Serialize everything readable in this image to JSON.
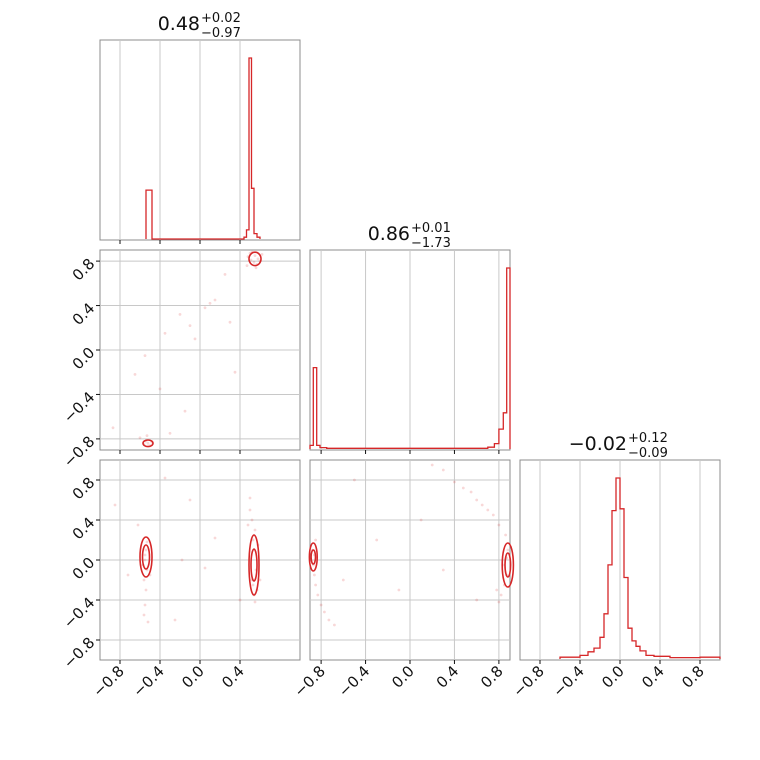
{
  "chart_data": [
    {
      "type": "histogram",
      "panel": "diag-0",
      "title": {
        "value": "0.48",
        "plus": "+0.02",
        "minus": "−0.97"
      },
      "xlim": [
        -1,
        1
      ],
      "bins": [
        {
          "x0": -0.54,
          "x1": -0.48,
          "h": 0.27
        },
        {
          "x0": 0.44,
          "x1": 0.465,
          "h": 0.01
        },
        {
          "x0": 0.465,
          "x1": 0.49,
          "h": 0.05
        },
        {
          "x0": 0.49,
          "x1": 0.515,
          "h": 1.0
        },
        {
          "x0": 0.515,
          "x1": 0.54,
          "h": 0.28
        },
        {
          "x0": 0.54,
          "x1": 0.57,
          "h": 0.03
        },
        {
          "x0": 0.57,
          "x1": 0.6,
          "h": 0.01
        }
      ]
    },
    {
      "type": "histogram",
      "panel": "diag-1",
      "title": {
        "value": "0.86",
        "plus": "+0.01",
        "minus": "−1.73"
      },
      "xlim": [
        -0.9,
        0.9
      ],
      "bins": [
        {
          "x0": -0.9,
          "x1": -0.87,
          "h": 0.02
        },
        {
          "x0": -0.87,
          "x1": -0.84,
          "h": 0.45
        },
        {
          "x0": -0.84,
          "x1": -0.81,
          "h": 0.02
        },
        {
          "x0": -0.81,
          "x1": -0.75,
          "h": 0.008
        },
        {
          "x0": -0.75,
          "x1": 0.7,
          "h": 0.004
        },
        {
          "x0": 0.7,
          "x1": 0.76,
          "h": 0.01
        },
        {
          "x0": 0.76,
          "x1": 0.8,
          "h": 0.03
        },
        {
          "x0": 0.8,
          "x1": 0.84,
          "h": 0.11
        },
        {
          "x0": 0.84,
          "x1": 0.87,
          "h": 0.2
        },
        {
          "x0": 0.87,
          "x1": 0.9,
          "h": 1.0
        }
      ]
    },
    {
      "type": "histogram",
      "panel": "diag-2",
      "title": {
        "value": "−0.02",
        "plus": "+0.12",
        "minus": "−0.09"
      },
      "xlim": [
        -1,
        1
      ],
      "bins": [
        {
          "x0": -0.6,
          "x1": -0.4,
          "h": 0.01
        },
        {
          "x0": -0.4,
          "x1": -0.32,
          "h": 0.02
        },
        {
          "x0": -0.32,
          "x1": -0.26,
          "h": 0.04
        },
        {
          "x0": -0.26,
          "x1": -0.2,
          "h": 0.06
        },
        {
          "x0": -0.2,
          "x1": -0.16,
          "h": 0.12
        },
        {
          "x0": -0.16,
          "x1": -0.12,
          "h": 0.25
        },
        {
          "x0": -0.12,
          "x1": -0.08,
          "h": 0.52
        },
        {
          "x0": -0.08,
          "x1": -0.04,
          "h": 0.82
        },
        {
          "x0": -0.04,
          "x1": 0.0,
          "h": 1.0
        },
        {
          "x0": 0.0,
          "x1": 0.04,
          "h": 0.83
        },
        {
          "x0": 0.04,
          "x1": 0.08,
          "h": 0.45
        },
        {
          "x0": 0.08,
          "x1": 0.12,
          "h": 0.17
        },
        {
          "x0": 0.12,
          "x1": 0.16,
          "h": 0.1
        },
        {
          "x0": 0.16,
          "x1": 0.2,
          "h": 0.07
        },
        {
          "x0": 0.2,
          "x1": 0.26,
          "h": 0.045
        },
        {
          "x0": 0.26,
          "x1": 0.34,
          "h": 0.02
        },
        {
          "x0": 0.34,
          "x1": 0.5,
          "h": 0.015
        },
        {
          "x0": 0.5,
          "x1": 0.8,
          "h": 0.008
        },
        {
          "x0": 0.8,
          "x1": 1.0,
          "h": 0.01
        }
      ]
    },
    {
      "type": "scatter",
      "panel": "p10",
      "xlim": [
        -1,
        1
      ],
      "ylim": [
        -0.9,
        0.9
      ],
      "points": [
        [
          0.52,
          0.88
        ],
        [
          0.55,
          0.85
        ],
        [
          0.58,
          0.82
        ],
        [
          0.5,
          0.87
        ],
        [
          0.6,
          0.8
        ],
        [
          0.54,
          0.79
        ],
        [
          0.48,
          0.84
        ],
        [
          0.62,
          0.86
        ],
        [
          0.57,
          0.77
        ],
        [
          0.51,
          0.81
        ],
        [
          0.56,
          0.74
        ],
        [
          0.47,
          0.76
        ],
        [
          -0.54,
          -0.82
        ],
        [
          -0.52,
          -0.84
        ],
        [
          -0.5,
          -0.86
        ],
        [
          -0.56,
          -0.85
        ],
        [
          -0.48,
          -0.83
        ],
        [
          -0.6,
          -0.79
        ],
        [
          -0.53,
          -0.77
        ],
        [
          -0.87,
          -0.7
        ],
        [
          -0.3,
          -0.75
        ],
        [
          -0.2,
          0.32
        ],
        [
          -0.55,
          -0.05
        ],
        [
          0.15,
          0.45
        ],
        [
          0.05,
          0.38
        ],
        [
          0.25,
          0.68
        ],
        [
          -0.35,
          0.15
        ],
        [
          -0.65,
          -0.22
        ],
        [
          0.1,
          0.42
        ],
        [
          -0.05,
          0.1
        ],
        [
          0.3,
          0.25
        ],
        [
          -0.15,
          -0.55
        ],
        [
          0.35,
          -0.2
        ],
        [
          -0.4,
          -0.35
        ],
        [
          -0.1,
          0.22
        ]
      ],
      "contours": [
        {
          "cx": 0.55,
          "cy": 0.82,
          "rx": 0.06,
          "ry": 0.06
        },
        {
          "cx": -0.52,
          "cy": -0.84,
          "rx": 0.05,
          "ry": 0.03
        }
      ]
    },
    {
      "type": "scatter",
      "panel": "p20",
      "xlim": [
        -1,
        1
      ],
      "ylim": [
        -1,
        1
      ],
      "points": [
        [
          -0.54,
          0.1
        ],
        [
          -0.55,
          0.0
        ],
        [
          -0.53,
          -0.1
        ],
        [
          -0.56,
          -0.2
        ],
        [
          -0.54,
          -0.3
        ],
        [
          -0.53,
          0.18
        ],
        [
          -0.55,
          -0.45
        ],
        [
          -0.56,
          -0.55
        ],
        [
          -0.52,
          -0.62
        ],
        [
          -0.55,
          0.05
        ],
        [
          -0.57,
          -0.05
        ],
        [
          -0.5,
          -0.15
        ],
        [
          0.5,
          0.5
        ],
        [
          0.52,
          0.4
        ],
        [
          0.55,
          0.3
        ],
        [
          0.53,
          0.2
        ],
        [
          0.56,
          -0.1
        ],
        [
          0.52,
          -0.2
        ],
        [
          0.54,
          -0.35
        ],
        [
          0.57,
          -0.3
        ],
        [
          0.6,
          -0.2
        ],
        [
          0.5,
          0.62
        ],
        [
          0.55,
          -0.42
        ],
        [
          0.58,
          0.15
        ],
        [
          0.53,
          -0.25
        ],
        [
          0.48,
          0.35
        ],
        [
          -0.85,
          0.55
        ],
        [
          -0.62,
          0.35
        ],
        [
          -0.18,
          0.0
        ],
        [
          0.05,
          -0.08
        ],
        [
          -0.35,
          0.82
        ],
        [
          -0.1,
          0.6
        ],
        [
          0.15,
          0.22
        ],
        [
          -0.72,
          -0.15
        ],
        [
          0.4,
          -0.4
        ],
        [
          -0.25,
          -0.6
        ]
      ],
      "contours": [
        {
          "cx": -0.54,
          "cy": 0.03,
          "rx": 0.06,
          "ry": 0.2
        },
        {
          "cx": -0.54,
          "cy": 0.03,
          "rx": 0.035,
          "ry": 0.12
        },
        {
          "cx": 0.54,
          "cy": -0.05,
          "rx": 0.05,
          "ry": 0.3
        },
        {
          "cx": 0.54,
          "cy": -0.05,
          "rx": 0.03,
          "ry": 0.16
        }
      ]
    },
    {
      "type": "scatter",
      "panel": "p21",
      "xlim": [
        -0.9,
        0.9
      ],
      "ylim": [
        -1,
        1
      ],
      "points": [
        [
          -0.88,
          0.1
        ],
        [
          -0.87,
          -0.05
        ],
        [
          -0.86,
          -0.15
        ],
        [
          -0.85,
          -0.25
        ],
        [
          -0.83,
          -0.35
        ],
        [
          -0.8,
          -0.45
        ],
        [
          -0.77,
          -0.52
        ],
        [
          -0.73,
          -0.6
        ],
        [
          -0.68,
          -0.65
        ],
        [
          -0.85,
          0.2
        ],
        [
          -0.86,
          0.05
        ],
        [
          0.88,
          0.1
        ],
        [
          0.87,
          -0.15
        ],
        [
          0.85,
          -0.25
        ],
        [
          0.82,
          -0.35
        ],
        [
          0.8,
          -0.42
        ],
        [
          0.86,
          0.25
        ],
        [
          0.8,
          0.35
        ],
        [
          0.75,
          0.45
        ],
        [
          0.7,
          0.5
        ],
        [
          0.65,
          0.55
        ],
        [
          0.6,
          0.6
        ],
        [
          0.55,
          0.68
        ],
        [
          0.48,
          0.72
        ],
        [
          0.4,
          0.78
        ],
        [
          0.3,
          0.9
        ],
        [
          0.2,
          0.95
        ],
        [
          0.84,
          -0.05
        ],
        [
          0.87,
          0.02
        ],
        [
          0.78,
          -0.3
        ],
        [
          -0.5,
          0.8
        ],
        [
          -0.3,
          0.2
        ],
        [
          0.1,
          0.4
        ],
        [
          0.3,
          -0.1
        ],
        [
          -0.1,
          -0.3
        ],
        [
          0.6,
          -0.4
        ],
        [
          -0.6,
          -0.2
        ]
      ],
      "contours": [
        {
          "cx": -0.87,
          "cy": 0.03,
          "rx": 0.035,
          "ry": 0.14
        },
        {
          "cx": -0.87,
          "cy": 0.03,
          "rx": 0.02,
          "ry": 0.07
        },
        {
          "cx": 0.88,
          "cy": -0.05,
          "rx": 0.05,
          "ry": 0.22
        },
        {
          "cx": 0.88,
          "cy": -0.05,
          "rx": 0.025,
          "ry": 0.12
        }
      ]
    }
  ],
  "axes": {
    "y_row1": [
      "0.8",
      "0.4",
      "0.0",
      "−0.4",
      "−0.8"
    ],
    "y_row2": [
      "0.8",
      "0.4",
      "0.0",
      "−0.4",
      "−0.8"
    ],
    "x_col0": [
      "−0.8",
      "−0.4",
      "0.0",
      "0.4"
    ],
    "x_col1": [
      "−0.8",
      "−0.4",
      "0.0",
      "0.4",
      "0.8"
    ],
    "x_col2": [
      "−0.8",
      "−0.4",
      "0.0",
      "0.4",
      "0.8"
    ]
  },
  "colors": {
    "line": "#d62728",
    "grid": "#c8c8c8",
    "spine": "#8c8c8c",
    "text": "#111111"
  }
}
